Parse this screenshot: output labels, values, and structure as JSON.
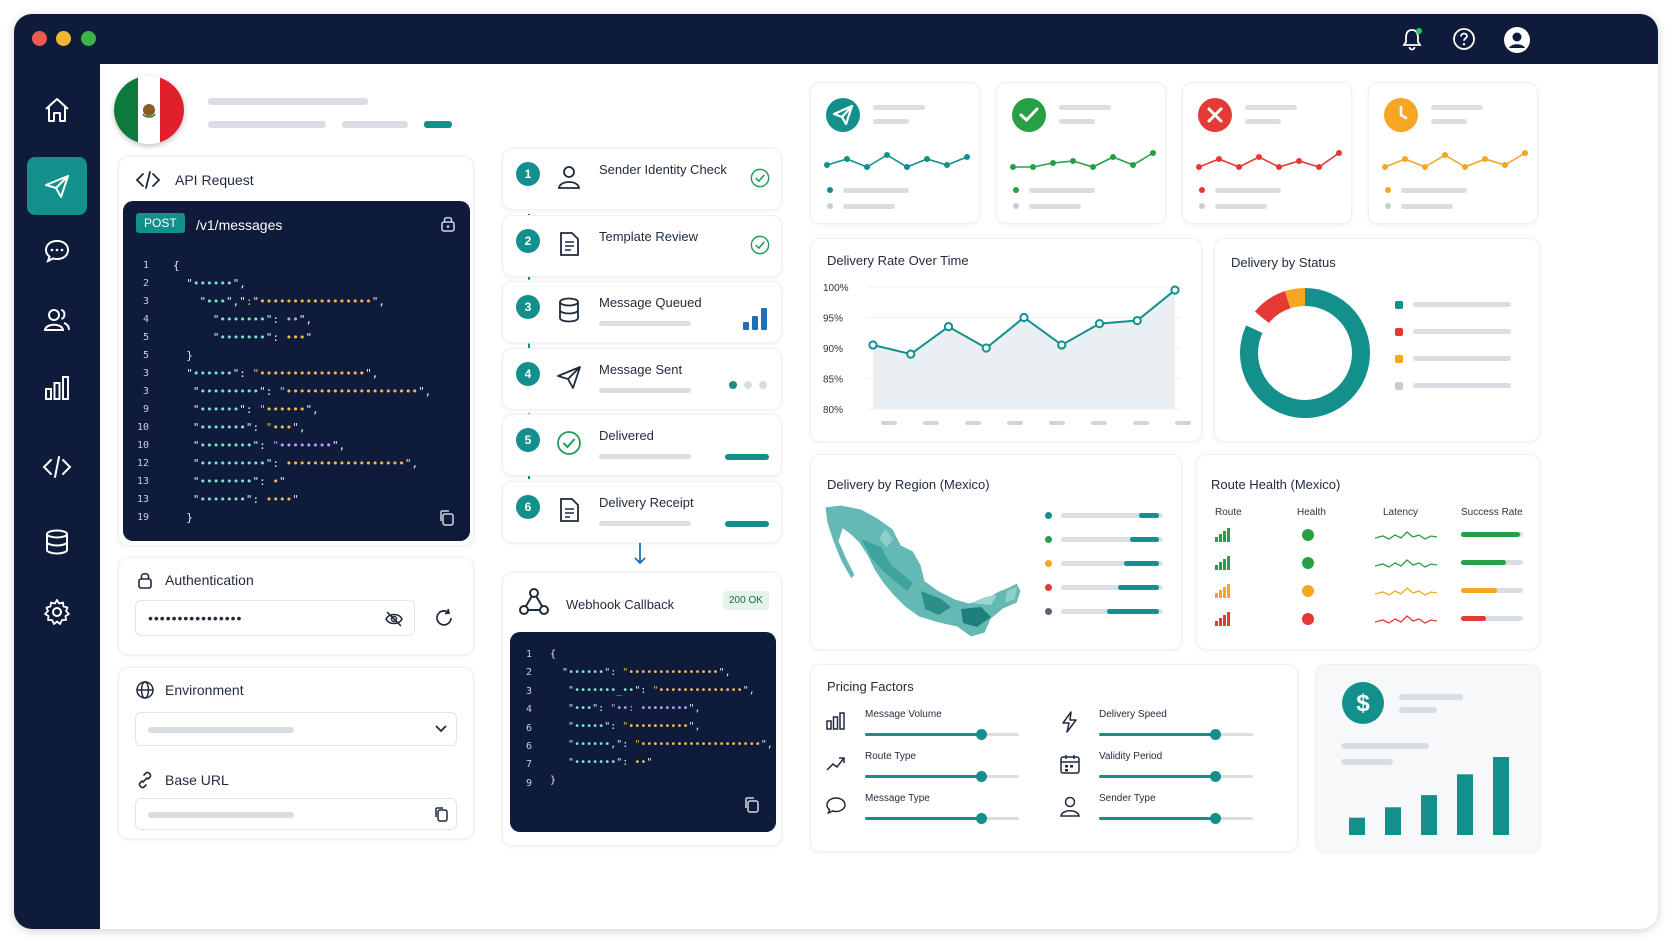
{
  "request": {
    "title": "API Request",
    "method": "POST",
    "path": "/v1/messages",
    "line_numbers": [
      "1",
      "2",
      "3",
      "4",
      "5",
      "5",
      "3",
      "3",
      "9",
      "10",
      "10",
      "12",
      "13",
      "13",
      "19"
    ]
  },
  "auth": {
    "title": "Authentication",
    "value": "••••••••••••••••"
  },
  "environment": {
    "title": "Environment"
  },
  "base_url": {
    "title": "Base URL"
  },
  "pipeline": {
    "steps": [
      {
        "num": "1",
        "label": "Sender Identity Check",
        "icon": "user-icon",
        "status": "check-circle-icon"
      },
      {
        "num": "2",
        "label": "Template Review",
        "icon": "document-icon",
        "status": "check-circle-icon"
      },
      {
        "num": "3",
        "label": "Message Queued",
        "icon": "database-icon",
        "status": "bar-chart-icon"
      },
      {
        "num": "4",
        "label": "Message Sent",
        "icon": "send-icon",
        "status": "dots-icon"
      },
      {
        "num": "5",
        "label": "Delivered",
        "icon": "check-circle-icon",
        "status": "progress-bar"
      },
      {
        "num": "6",
        "label": "Delivery Receipt",
        "icon": "receipt-icon",
        "status": "progress-bar"
      }
    ]
  },
  "webhook": {
    "title": "Webhook Callback",
    "status": "200 OK",
    "line_numbers": [
      "1",
      "2",
      "3",
      "4",
      "6",
      "6",
      "7",
      "9"
    ]
  },
  "kpis": [
    {
      "icon": "send-icon",
      "color": "#138f8c"
    },
    {
      "icon": "check-icon",
      "color": "#27a045"
    },
    {
      "icon": "close-icon",
      "color": "#e53935"
    },
    {
      "icon": "clock-icon",
      "color": "#f5a623"
    }
  ],
  "delivery_rate": {
    "title": "Delivery Rate Over Time",
    "chart_data": {
      "type": "area",
      "y_ticks": [
        "100%",
        "95%",
        "90%",
        "85%",
        "80%"
      ],
      "ylim": [
        80,
        100
      ],
      "values": [
        90.5,
        89,
        93.5,
        90,
        95,
        90.5,
        94,
        94.5,
        99.5
      ]
    }
  },
  "status": {
    "title": "Delivery by Status",
    "chart_data": {
      "type": "pie",
      "values": [
        82,
        9,
        5,
        4
      ],
      "colors": [
        "#138f8c",
        "#e53935",
        "#f5a623",
        "#c9ccd2"
      ]
    }
  },
  "region": {
    "title": "Delivery by Region (Mexico)",
    "legend_colors": [
      "#138f8c",
      "#27a045",
      "#f5a623",
      "#e53935",
      "#5a6472"
    ]
  },
  "route_health": {
    "title": "Route Health (Mexico)",
    "columns": [
      "Route",
      "Health",
      "Latency",
      "Success Rate"
    ],
    "rows": [
      {
        "color": "#27a045",
        "success": 0.95
      },
      {
        "color": "#27a045",
        "success": 0.72
      },
      {
        "color": "#f5a623",
        "success": 0.58
      },
      {
        "color": "#e53935",
        "success": 0.4
      }
    ]
  },
  "pricing": {
    "title": "Pricing Factors",
    "factors": [
      {
        "label": "Message Volume",
        "icon": "bar-chart-icon",
        "level": 0.75
      },
      {
        "label": "Route Type",
        "icon": "route-icon",
        "level": 0.75
      },
      {
        "label": "Message Type",
        "icon": "chat-icon",
        "level": 0.75
      },
      {
        "label": "Delivery Speed",
        "icon": "lightning-icon",
        "level": 0.75
      },
      {
        "label": "Validity Period",
        "icon": "calendar-icon",
        "level": 0.75
      },
      {
        "label": "Sender Type",
        "icon": "user-icon",
        "level": 0.75
      }
    ]
  },
  "cost": {
    "icon": "dollar-icon",
    "chart_data": {
      "type": "bar",
      "values": [
        1,
        1.6,
        2.3,
        3.5,
        4.5
      ]
    }
  },
  "sidebar": {
    "items": [
      "home-icon",
      "send-icon",
      "chat-icon",
      "users-icon",
      "bar-chart-icon",
      "code-icon",
      "database-icon",
      "settings-icon"
    ]
  },
  "colors": {
    "accent": "#138f8c",
    "navy": "#0f1b3a",
    "green": "#27a045",
    "red": "#e53935",
    "orange": "#f5a623"
  }
}
